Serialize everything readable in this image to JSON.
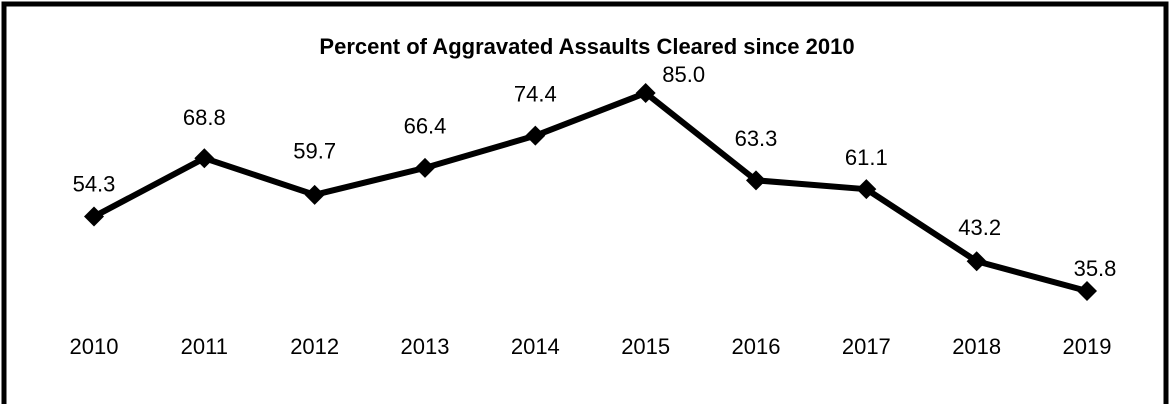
{
  "chart_data": {
    "type": "line",
    "title": "Percent of Aggravated Assaults Cleared since 2010",
    "categories": [
      "2010",
      "2011",
      "2012",
      "2013",
      "2014",
      "2015",
      "2016",
      "2017",
      "2018",
      "2019"
    ],
    "series": [
      {
        "color": "#000000",
        "values": [
          54.3,
          68.8,
          59.7,
          66.4,
          74.4,
          85.0,
          63.3,
          61.1,
          43.2,
          35.8
        ],
        "value_labels": [
          "54.3",
          "68.8",
          "59.7",
          "66.4",
          "74.4",
          "85.0",
          "63.3",
          "61.1",
          "43.2",
          "35.8"
        ]
      }
    ]
  }
}
